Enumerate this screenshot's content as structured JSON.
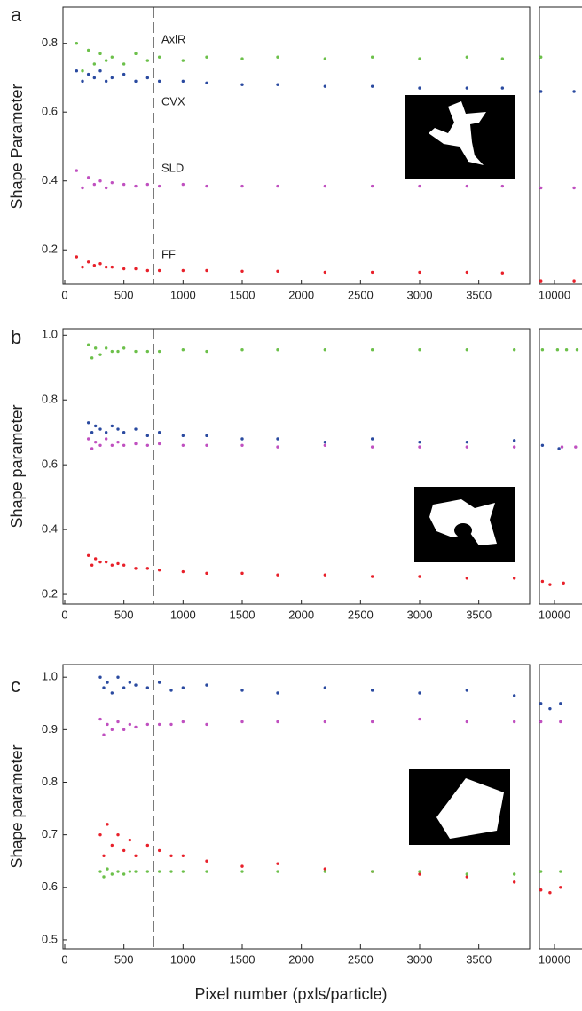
{
  "figure": {
    "x_label": "Pixel number (pxls/particle)"
  },
  "chart_data": [
    {
      "type": "scatter",
      "panel": "a",
      "y_label": "Shape Parameter",
      "xlim": [
        -15,
        3930
      ],
      "xticks": [
        0,
        500,
        1000,
        1500,
        2000,
        2500,
        3000,
        3500
      ],
      "ylim": [
        0.1,
        0.905
      ],
      "yticks": [
        0.2,
        0.4,
        0.6,
        0.8
      ],
      "vline": 750,
      "series": [
        {
          "name": "AxlR",
          "color": "#6cc04a",
          "x": [
            100,
            150,
            200,
            250,
            300,
            350,
            400,
            500,
            600,
            700,
            800,
            1000,
            1200,
            1500,
            1800,
            2200,
            2600,
            3000,
            3400,
            3700
          ],
          "values": [
            0.8,
            0.72,
            0.78,
            0.74,
            0.77,
            0.75,
            0.76,
            0.74,
            0.77,
            0.75,
            0.76,
            0.75,
            0.76,
            0.755,
            0.76,
            0.755,
            0.76,
            0.755,
            0.76,
            0.755
          ]
        },
        {
          "name": "CVX",
          "color": "#2a4aa0",
          "x": [
            100,
            150,
            200,
            250,
            300,
            350,
            400,
            500,
            600,
            700,
            800,
            1000,
            1200,
            1500,
            1800,
            2200,
            2600,
            3000,
            3400,
            3700
          ],
          "values": [
            0.72,
            0.69,
            0.71,
            0.7,
            0.72,
            0.69,
            0.7,
            0.71,
            0.69,
            0.7,
            0.69,
            0.69,
            0.685,
            0.68,
            0.68,
            0.675,
            0.675,
            0.67,
            0.67,
            0.67
          ]
        },
        {
          "name": "SLD",
          "color": "#c050c0",
          "x": [
            100,
            150,
            200,
            250,
            300,
            350,
            400,
            500,
            600,
            700,
            800,
            1000,
            1200,
            1500,
            1800,
            2200,
            2600,
            3000,
            3400,
            3700
          ],
          "values": [
            0.43,
            0.38,
            0.41,
            0.39,
            0.4,
            0.38,
            0.395,
            0.39,
            0.385,
            0.39,
            0.385,
            0.39,
            0.385,
            0.385,
            0.385,
            0.385,
            0.385,
            0.385,
            0.385,
            0.385
          ]
        },
        {
          "name": "FF",
          "color": "#e8202a",
          "x": [
            100,
            150,
            200,
            250,
            300,
            350,
            400,
            500,
            600,
            700,
            800,
            1000,
            1200,
            1500,
            1800,
            2200,
            2600,
            3000,
            3400,
            3700
          ],
          "values": [
            0.18,
            0.15,
            0.165,
            0.155,
            0.16,
            0.15,
            0.15,
            0.145,
            0.145,
            0.14,
            0.14,
            0.14,
            0.14,
            0.138,
            0.138,
            0.135,
            0.135,
            0.135,
            0.135,
            0.133
          ]
        }
      ],
      "break": {
        "xlim": [
          9000,
          12000
        ],
        "xticks": [
          10000
        ],
        "series": [
          {
            "color": "#6cc04a",
            "x": [
              9100
            ],
            "values": [
              0.76
            ]
          },
          {
            "color": "#2a4aa0",
            "x": [
              9100,
              11300
            ],
            "values": [
              0.66,
              0.66
            ]
          },
          {
            "color": "#c050c0",
            "x": [
              9100,
              11300
            ],
            "values": [
              0.38,
              0.38
            ]
          },
          {
            "color": "#e8202a",
            "x": [
              9100,
              11300
            ],
            "values": [
              0.11,
              0.11
            ]
          }
        ]
      }
    },
    {
      "type": "scatter",
      "panel": "b",
      "y_label": "Shape parameter",
      "xlim": [
        -15,
        3930
      ],
      "xticks": [
        0,
        500,
        1000,
        1500,
        2000,
        2500,
        3000,
        3500
      ],
      "ylim": [
        0.17,
        1.02
      ],
      "yticks": [
        0.2,
        0.4,
        0.6,
        0.8,
        {
          "value": 1.0,
          "label": "1.0"
        }
      ],
      "vline": 750,
      "series": [
        {
          "color": "#6cc04a",
          "x": [
            200,
            230,
            260,
            300,
            350,
            400,
            450,
            500,
            600,
            700,
            800,
            1000,
            1200,
            1500,
            1800,
            2200,
            2600,
            3000,
            3400,
            3800
          ],
          "values": [
            0.97,
            0.93,
            0.96,
            0.94,
            0.96,
            0.95,
            0.95,
            0.96,
            0.95,
            0.95,
            0.95,
            0.955,
            0.95,
            0.955,
            0.955,
            0.955,
            0.955,
            0.955,
            0.955,
            0.955
          ]
        },
        {
          "color": "#2a4aa0",
          "x": [
            200,
            230,
            260,
            300,
            350,
            400,
            450,
            500,
            600,
            700,
            800,
            1000,
            1200,
            1500,
            1800,
            2200,
            2600,
            3000,
            3400,
            3800
          ],
          "values": [
            0.73,
            0.7,
            0.72,
            0.71,
            0.7,
            0.72,
            0.71,
            0.7,
            0.71,
            0.69,
            0.7,
            0.69,
            0.69,
            0.68,
            0.68,
            0.67,
            0.68,
            0.67,
            0.67,
            0.675
          ]
        },
        {
          "color": "#c050c0",
          "x": [
            200,
            230,
            260,
            300,
            350,
            400,
            450,
            500,
            600,
            700,
            800,
            1000,
            1200,
            1500,
            1800,
            2200,
            2600,
            3000,
            3400,
            3800
          ],
          "values": [
            0.68,
            0.65,
            0.67,
            0.66,
            0.68,
            0.66,
            0.67,
            0.66,
            0.665,
            0.66,
            0.665,
            0.66,
            0.66,
            0.66,
            0.655,
            0.66,
            0.655,
            0.655,
            0.655,
            0.655
          ]
        },
        {
          "color": "#e8202a",
          "x": [
            200,
            230,
            260,
            300,
            350,
            400,
            450,
            500,
            600,
            700,
            800,
            1000,
            1200,
            1500,
            1800,
            2200,
            2600,
            3000,
            3400,
            3800
          ],
          "values": [
            0.32,
            0.29,
            0.31,
            0.3,
            0.3,
            0.29,
            0.295,
            0.29,
            0.28,
            0.28,
            0.275,
            0.27,
            0.265,
            0.265,
            0.26,
            0.26,
            0.255,
            0.255,
            0.25,
            0.25
          ]
        }
      ],
      "break": {
        "xlim": [
          9000,
          12000
        ],
        "xticks": [
          10000
        ],
        "series": [
          {
            "color": "#6cc04a",
            "x": [
              9200,
              10200,
              10800,
              11500
            ],
            "values": [
              0.955,
              0.955,
              0.955,
              0.955
            ]
          },
          {
            "color": "#2a4aa0",
            "x": [
              9200,
              10300
            ],
            "values": [
              0.66,
              0.65
            ]
          },
          {
            "color": "#c050c0",
            "x": [
              10500,
              11400
            ],
            "values": [
              0.655,
              0.655
            ]
          },
          {
            "color": "#e8202a",
            "x": [
              9200,
              9700,
              10600
            ],
            "values": [
              0.24,
              0.23,
              0.235
            ]
          }
        ]
      }
    },
    {
      "type": "scatter",
      "panel": "c",
      "y_label": "Shape parameter",
      "xlim": [
        -15,
        3930
      ],
      "xticks": [
        0,
        500,
        1000,
        1500,
        2000,
        2500,
        3000,
        3500
      ],
      "ylim": [
        0.483,
        1.024
      ],
      "yticks": [
        0.5,
        0.6,
        0.7,
        0.8,
        0.9,
        {
          "value": 1.0,
          "label": "1.0"
        }
      ],
      "vline": 750,
      "series": [
        {
          "color": "#2a4aa0",
          "x": [
            300,
            330,
            360,
            400,
            450,
            500,
            550,
            600,
            700,
            800,
            900,
            1000,
            1200,
            1500,
            1800,
            2200,
            2600,
            3000,
            3400,
            3800
          ],
          "values": [
            1.0,
            0.98,
            0.99,
            0.97,
            1.0,
            0.98,
            0.99,
            0.985,
            0.98,
            0.99,
            0.975,
            0.98,
            0.985,
            0.975,
            0.97,
            0.98,
            0.975,
            0.97,
            0.975,
            0.965
          ]
        },
        {
          "color": "#c050c0",
          "x": [
            300,
            330,
            360,
            400,
            450,
            500,
            550,
            600,
            700,
            800,
            900,
            1000,
            1200,
            1500,
            1800,
            2200,
            2600,
            3000,
            3400,
            3800
          ],
          "values": [
            0.92,
            0.89,
            0.91,
            0.9,
            0.915,
            0.9,
            0.91,
            0.905,
            0.91,
            0.91,
            0.91,
            0.915,
            0.91,
            0.915,
            0.915,
            0.915,
            0.915,
            0.92,
            0.915,
            0.915
          ]
        },
        {
          "color": "#e8202a",
          "x": [
            300,
            330,
            360,
            400,
            450,
            500,
            550,
            600,
            700,
            800,
            900,
            1000,
            1200,
            1500,
            1800,
            2200,
            2600,
            3000,
            3400,
            3800
          ],
          "values": [
            0.7,
            0.66,
            0.72,
            0.68,
            0.7,
            0.67,
            0.69,
            0.66,
            0.68,
            0.67,
            0.66,
            0.66,
            0.65,
            0.64,
            0.645,
            0.635,
            0.63,
            0.625,
            0.62,
            0.61
          ]
        },
        {
          "color": "#6cc04a",
          "x": [
            300,
            330,
            360,
            400,
            450,
            500,
            550,
            600,
            700,
            800,
            900,
            1000,
            1200,
            1500,
            1800,
            2200,
            2600,
            3000,
            3400,
            3800
          ],
          "values": [
            0.63,
            0.62,
            0.635,
            0.625,
            0.63,
            0.625,
            0.63,
            0.63,
            0.63,
            0.63,
            0.63,
            0.63,
            0.63,
            0.63,
            0.63,
            0.63,
            0.63,
            0.63,
            0.625,
            0.625
          ]
        }
      ],
      "break": {
        "xlim": [
          9000,
          12000
        ],
        "xticks": [
          10000
        ],
        "series": [
          {
            "color": "#2a4aa0",
            "x": [
              9100,
              9700,
              10400
            ],
            "values": [
              0.95,
              0.94,
              0.95
            ]
          },
          {
            "color": "#c050c0",
            "x": [
              9100,
              10400
            ],
            "values": [
              0.915,
              0.915
            ]
          },
          {
            "color": "#6cc04a",
            "x": [
              9100,
              10400
            ],
            "values": [
              0.63,
              0.63
            ]
          },
          {
            "color": "#e8202a",
            "x": [
              9100,
              9700,
              10400
            ],
            "values": [
              0.595,
              0.59,
              0.6
            ]
          }
        ]
      }
    }
  ]
}
